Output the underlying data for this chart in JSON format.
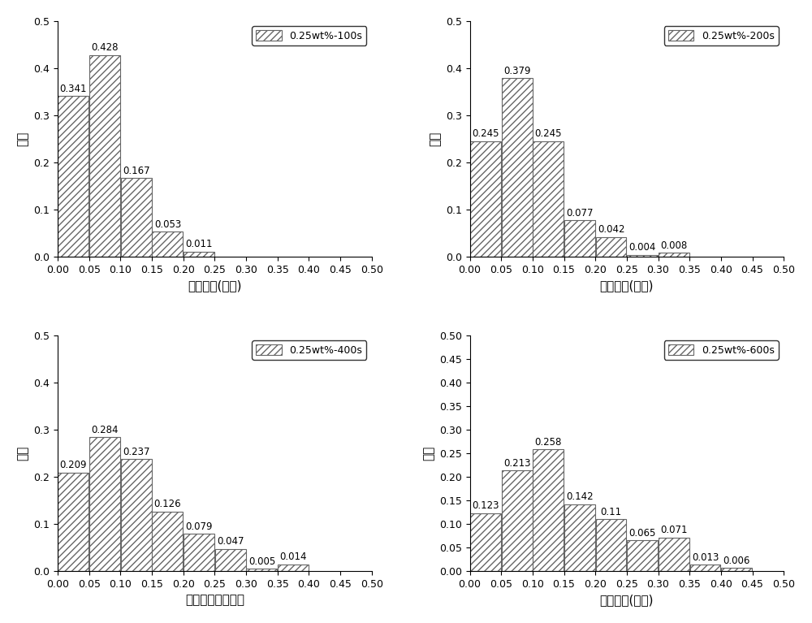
{
  "subplots": [
    {
      "label": "0.25wt%-100s",
      "bar_centers": [
        0.025,
        0.075,
        0.125,
        0.175,
        0.225
      ],
      "values": [
        0.341,
        0.428,
        0.167,
        0.053,
        0.011
      ],
      "ylim": [
        0,
        0.5
      ],
      "yticks": [
        0.0,
        0.1,
        0.2,
        0.3,
        0.4,
        0.5
      ],
      "yticklabels": [
        "0.0",
        "0.1",
        "0.2",
        "0.3",
        "0.4",
        "0.5"
      ],
      "xlabel": "泡沫直径(毫米)",
      "ylabel": "频率",
      "hatch": "////",
      "legend_loc": "upper right",
      "bar_width": 0.05
    },
    {
      "label": "0.25wt%-200s",
      "bar_centers": [
        0.025,
        0.075,
        0.125,
        0.175,
        0.225,
        0.275,
        0.325
      ],
      "values": [
        0.245,
        0.379,
        0.245,
        0.077,
        0.042,
        0.004,
        0.008
      ],
      "ylim": [
        0,
        0.5
      ],
      "yticks": [
        0.0,
        0.1,
        0.2,
        0.3,
        0.4,
        0.5
      ],
      "yticklabels": [
        "0.0",
        "0.1",
        "0.2",
        "0.3",
        "0.4",
        "0.5"
      ],
      "xlabel": "泡沫直径(毫米)",
      "ylabel": "频率",
      "hatch": "////",
      "legend_loc": "upper right",
      "bar_width": 0.05
    },
    {
      "label": "0.25wt%-400s",
      "bar_centers": [
        0.025,
        0.075,
        0.125,
        0.175,
        0.225,
        0.275,
        0.325,
        0.375
      ],
      "values": [
        0.209,
        0.284,
        0.237,
        0.126,
        0.079,
        0.047,
        0.005,
        0.014
      ],
      "ylim": [
        0,
        0.5
      ],
      "yticks": [
        0.0,
        0.1,
        0.2,
        0.3,
        0.4,
        0.5
      ],
      "yticklabels": [
        "0.0",
        "0.1",
        "0.2",
        "0.3",
        "0.4",
        "0.5"
      ],
      "xlabel": "泡沫直径（毫米）",
      "ylabel": "频率",
      "hatch": "////",
      "legend_loc": "upper right",
      "bar_width": 0.05
    },
    {
      "label": "0.25wt%-600s",
      "bar_centers": [
        0.025,
        0.075,
        0.125,
        0.175,
        0.225,
        0.275,
        0.325,
        0.375,
        0.425
      ],
      "values": [
        0.123,
        0.213,
        0.258,
        0.142,
        0.11,
        0.065,
        0.071,
        0.013,
        0.006
      ],
      "ylim": [
        0,
        0.5
      ],
      "yticks": [
        0.0,
        0.05,
        0.1,
        0.15,
        0.2,
        0.25,
        0.3,
        0.35,
        0.4,
        0.45,
        0.5
      ],
      "yticklabels": [
        "0.00",
        "0.05",
        "0.10",
        "0.15",
        "0.20",
        "0.25",
        "0.30",
        "0.35",
        "0.40",
        "0.45",
        "0.50"
      ],
      "xlabel": "泡沫直径(毫米)",
      "ylabel": "频率",
      "hatch": "////",
      "legend_loc": "upper right",
      "bar_width": 0.05
    }
  ],
  "xlim": [
    0,
    0.5
  ],
  "xticks": [
    0.0,
    0.05,
    0.1,
    0.15,
    0.2,
    0.25,
    0.3,
    0.35,
    0.4,
    0.45,
    0.5
  ],
  "xticklabels": [
    "0.00",
    "0.05",
    "0.10",
    "0.15",
    "0.20",
    "0.25",
    "0.30",
    "0.35",
    "0.40",
    "0.45",
    "0.50"
  ],
  "bar_color": "white",
  "bar_edgecolor": "#666666",
  "label_fontsize": 11,
  "tick_fontsize": 9,
  "annotation_fontsize": 8.5,
  "legend_fontsize": 9,
  "figsize": [
    10.0,
    7.67
  ]
}
